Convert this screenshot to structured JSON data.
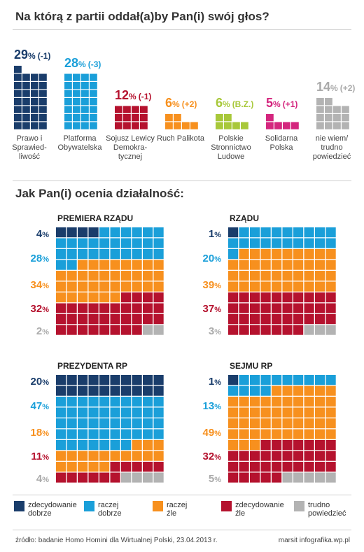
{
  "header": {
    "title": "Na którą z partii oddał(a)by Pan(i) swój głos?"
  },
  "section2": {
    "title": "Jak Pan(i) ocenia działalność:"
  },
  "colors": {
    "pis": "#1a3d6b",
    "po": "#1a9fd9",
    "sld": "#b5122e",
    "ruch": "#f7901e",
    "psl": "#a8c83a",
    "sp": "#d4267e",
    "nw": "#b3b3b3",
    "zdec_dobrze": "#1a3d6b",
    "raczej_dobrze": "#1a9fd9",
    "raczej_zle": "#f7901e",
    "zdec_zle": "#b5122e",
    "trudno": "#b3b3b3"
  },
  "chart_data": [
    {
      "type": "bar",
      "title": "Na którą z partii oddał(a)by Pan(i) swój głos?",
      "unit": "%",
      "series": [
        {
          "key": "pis",
          "label": "Prawo i Sprawied- liwość",
          "value": 29,
          "change": "(-1)"
        },
        {
          "key": "po",
          "label": "Platforma Obywatelska",
          "value": 28,
          "change": "(-3)"
        },
        {
          "key": "sld",
          "label": "Sojusz Lewicy Demokra- tycznej",
          "value": 12,
          "change": "(-1)"
        },
        {
          "key": "ruch",
          "label": "Ruch Palikota",
          "value": 6,
          "change": "(+2)"
        },
        {
          "key": "psl",
          "label": "Polskie Stronnictwo Ludowe",
          "value": 6,
          "change": "(B.Z.)"
        },
        {
          "key": "sp",
          "label": "Solidarna Polska",
          "value": 5,
          "change": "(+1)"
        },
        {
          "key": "nw",
          "label": "nie wiem/ trudno powiedzieć",
          "value": 14,
          "change": "(+2)"
        }
      ]
    },
    {
      "type": "waffle",
      "title": "Jak Pan(i) ocenia działalność:",
      "categories": [
        "zdecydowanie dobrze",
        "raczej dobrze",
        "raczej źle",
        "zdecydowanie źle",
        "trudno powiedzieć"
      ],
      "panels": [
        {
          "title": "PREMIERA RZĄDU",
          "values": [
            4,
            28,
            34,
            32,
            2
          ]
        },
        {
          "title": "RZĄDU",
          "values": [
            1,
            20,
            39,
            37,
            3
          ]
        },
        {
          "title": "PREZYDENTA RP",
          "values": [
            20,
            47,
            18,
            11,
            4
          ]
        },
        {
          "title": "SEJMU RP",
          "values": [
            1,
            13,
            49,
            32,
            5
          ]
        }
      ]
    }
  ],
  "legend": [
    {
      "key": "zdec_dobrze",
      "line1": "zdecydowanie",
      "line2": "dobrze"
    },
    {
      "key": "raczej_dobrze",
      "line1": "raczej",
      "line2": "dobrze"
    },
    {
      "key": "raczej_zle",
      "line1": "raczej",
      "line2": "źle"
    },
    {
      "key": "zdec_zle",
      "line1": "zdecydowanie",
      "line2": "źle"
    },
    {
      "key": "trudno",
      "line1": "trudno",
      "line2": "powiedzieć"
    }
  ],
  "footer": {
    "source": "źródło: badanie Homo Homini dla Wirtualnej Polski, 23.04.2013 r.",
    "credit": "marsit infografika.wp.pl"
  }
}
